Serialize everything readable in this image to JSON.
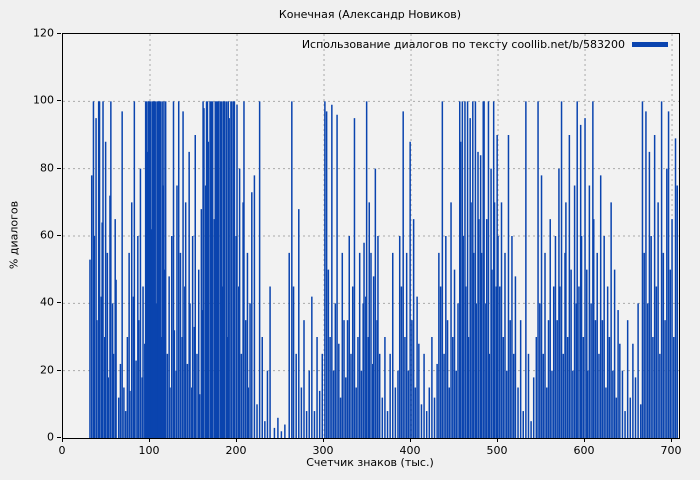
{
  "figure": {
    "title": "Конечная (Александр Новиков)",
    "xlabel": "Счетчик знаков (тыс.)",
    "ylabel": "% диалогов",
    "legend_label": "Использование диалогов по тексту coollib.net/b/583200"
  },
  "colors": {
    "bar": "#0a44af",
    "grid": "#aaaaaa",
    "border": "#000000",
    "background": "#f0f0f0",
    "plot_background": "#f2f2f2",
    "text": "#000000"
  },
  "chart_data": {
    "type": "bar",
    "title": "Конечная (Александр Новиков)",
    "xlabel": "Счетчик знаков (тыс.)",
    "ylabel": "% диалогов",
    "series": [
      {
        "name": "Использование диалогов по тексту coollib.net/b/583200",
        "style": "impulses"
      }
    ],
    "xlim": [
      0,
      708
    ],
    "ylim": [
      0,
      120
    ],
    "xticks": [
      0,
      100,
      200,
      300,
      400,
      500,
      600,
      700
    ],
    "yticks": [
      0,
      20,
      40,
      60,
      80,
      100,
      120
    ],
    "grid": true,
    "legend_position": "top-right",
    "bar_color": "#0a44af",
    "bars": [
      [
        31,
        53
      ],
      [
        33,
        78
      ],
      [
        35,
        100
      ],
      [
        36,
        60
      ],
      [
        38,
        95
      ],
      [
        39,
        35
      ],
      [
        41,
        100
      ],
      [
        42,
        100
      ],
      [
        44,
        42
      ],
      [
        45,
        64
      ],
      [
        46,
        100
      ],
      [
        48,
        30
      ],
      [
        49,
        88
      ],
      [
        51,
        55
      ],
      [
        52,
        18
      ],
      [
        54,
        72
      ],
      [
        55,
        100
      ],
      [
        57,
        40
      ],
      [
        58,
        25
      ],
      [
        60,
        65
      ],
      [
        61,
        47
      ],
      [
        64,
        12
      ],
      [
        66,
        22
      ],
      [
        68,
        97
      ],
      [
        70,
        15
      ],
      [
        72,
        8
      ],
      [
        74,
        30
      ],
      [
        76,
        55
      ],
      [
        77,
        14
      ],
      [
        79,
        70
      ],
      [
        81,
        42
      ],
      [
        82,
        100
      ],
      [
        84,
        23
      ],
      [
        86,
        60
      ],
      [
        87,
        35
      ],
      [
        89,
        80
      ],
      [
        91,
        18
      ],
      [
        92,
        45
      ],
      [
        94,
        28
      ],
      [
        95,
        100
      ],
      [
        96,
        100
      ],
      [
        97,
        85
      ],
      [
        98,
        100
      ],
      [
        99,
        100
      ],
      [
        100,
        100
      ],
      [
        101,
        100
      ],
      [
        102,
        62
      ],
      [
        103,
        100
      ],
      [
        104,
        100
      ],
      [
        105,
        100
      ],
      [
        106,
        100
      ],
      [
        107,
        40
      ],
      [
        108,
        100
      ],
      [
        109,
        100
      ],
      [
        110,
        100
      ],
      [
        111,
        100
      ],
      [
        112,
        100
      ],
      [
        113,
        30
      ],
      [
        114,
        100
      ],
      [
        115,
        75
      ],
      [
        116,
        100
      ],
      [
        117,
        50
      ],
      [
        118,
        100
      ],
      [
        120,
        25
      ],
      [
        122,
        48
      ],
      [
        123,
        15
      ],
      [
        125,
        60
      ],
      [
        127,
        100
      ],
      [
        128,
        32
      ],
      [
        130,
        20
      ],
      [
        131,
        75
      ],
      [
        133,
        100
      ],
      [
        135,
        55
      ],
      [
        137,
        30
      ],
      [
        138,
        97
      ],
      [
        140,
        45
      ],
      [
        141,
        70
      ],
      [
        143,
        22
      ],
      [
        145,
        85
      ],
      [
        146,
        40
      ],
      [
        148,
        15
      ],
      [
        149,
        60
      ],
      [
        151,
        33
      ],
      [
        152,
        90
      ],
      [
        154,
        25
      ],
      [
        156,
        50
      ],
      [
        157,
        13
      ],
      [
        159,
        68
      ],
      [
        160,
        38
      ],
      [
        161,
        100
      ],
      [
        162,
        98
      ],
      [
        164,
        75
      ],
      [
        165,
        100
      ],
      [
        166,
        100
      ],
      [
        167,
        88
      ],
      [
        169,
        100
      ],
      [
        170,
        100
      ],
      [
        171,
        100
      ],
      [
        172,
        100
      ],
      [
        174,
        65
      ],
      [
        175,
        100
      ],
      [
        176,
        100
      ],
      [
        177,
        100
      ],
      [
        178,
        100
      ],
      [
        179,
        100
      ],
      [
        181,
        100
      ],
      [
        182,
        100
      ],
      [
        183,
        45
      ],
      [
        184,
        100
      ],
      [
        185,
        100
      ],
      [
        186,
        100
      ],
      [
        188,
        100
      ],
      [
        189,
        30
      ],
      [
        190,
        100
      ],
      [
        191,
        95
      ],
      [
        193,
        100
      ],
      [
        194,
        100
      ],
      [
        196,
        100
      ],
      [
        197,
        100
      ],
      [
        199,
        60
      ],
      [
        200,
        99
      ],
      [
        202,
        45
      ],
      [
        203,
        80
      ],
      [
        205,
        25
      ],
      [
        207,
        70
      ],
      [
        208,
        100
      ],
      [
        210,
        35
      ],
      [
        212,
        55
      ],
      [
        213,
        15
      ],
      [
        215,
        40
      ],
      [
        217,
        73
      ],
      [
        220,
        78
      ],
      [
        223,
        10
      ],
      [
        226,
        100
      ],
      [
        229,
        30
      ],
      [
        232,
        5
      ],
      [
        235,
        20
      ],
      [
        238,
        45
      ],
      [
        243,
        3
      ],
      [
        247,
        6
      ],
      [
        251,
        2
      ],
      [
        255,
        4
      ],
      [
        260,
        55
      ],
      [
        263,
        100
      ],
      [
        265,
        45
      ],
      [
        268,
        25
      ],
      [
        271,
        68
      ],
      [
        274,
        15
      ],
      [
        277,
        35
      ],
      [
        280,
        8
      ],
      [
        283,
        20
      ],
      [
        286,
        42
      ],
      [
        289,
        8
      ],
      [
        292,
        30
      ],
      [
        295,
        14
      ],
      [
        298,
        25
      ],
      [
        301,
        100
      ],
      [
        303,
        97
      ],
      [
        305,
        50
      ],
      [
        307,
        30
      ],
      [
        309,
        99
      ],
      [
        311,
        20
      ],
      [
        313,
        40
      ],
      [
        315,
        96
      ],
      [
        317,
        28
      ],
      [
        319,
        12
      ],
      [
        321,
        55
      ],
      [
        323,
        35
      ],
      [
        325,
        18
      ],
      [
        327,
        35
      ],
      [
        329,
        60
      ],
      [
        331,
        25
      ],
      [
        333,
        45
      ],
      [
        335,
        95
      ],
      [
        337,
        15
      ],
      [
        339,
        30
      ],
      [
        341,
        55
      ],
      [
        343,
        20
      ],
      [
        345,
        40
      ],
      [
        346,
        58
      ],
      [
        348,
        42
      ],
      [
        349,
        100
      ],
      [
        351,
        30
      ],
      [
        352,
        70
      ],
      [
        354,
        55
      ],
      [
        356,
        22
      ],
      [
        357,
        48
      ],
      [
        359,
        80
      ],
      [
        361,
        35
      ],
      [
        362,
        60
      ],
      [
        364,
        25
      ],
      [
        367,
        12
      ],
      [
        370,
        30
      ],
      [
        373,
        8
      ],
      [
        376,
        25
      ],
      [
        379,
        55
      ],
      [
        382,
        15
      ],
      [
        385,
        20
      ],
      [
        387,
        60
      ],
      [
        389,
        45
      ],
      [
        391,
        97
      ],
      [
        393,
        30
      ],
      [
        395,
        55
      ],
      [
        397,
        20
      ],
      [
        399,
        88
      ],
      [
        401,
        35
      ],
      [
        403,
        65
      ],
      [
        405,
        15
      ],
      [
        407,
        42
      ],
      [
        409,
        28
      ],
      [
        412,
        10
      ],
      [
        415,
        25
      ],
      [
        418,
        8
      ],
      [
        421,
        15
      ],
      [
        424,
        30
      ],
      [
        427,
        12
      ],
      [
        430,
        22
      ],
      [
        432,
        55
      ],
      [
        434,
        45
      ],
      [
        436,
        100
      ],
      [
        438,
        25
      ],
      [
        440,
        60
      ],
      [
        442,
        35
      ],
      [
        444,
        15
      ],
      [
        446,
        70
      ],
      [
        448,
        30
      ],
      [
        450,
        50
      ],
      [
        452,
        20
      ],
      [
        454,
        40
      ],
      [
        456,
        100
      ],
      [
        457,
        88
      ],
      [
        459,
        100
      ],
      [
        460,
        60
      ],
      [
        462,
        100
      ],
      [
        463,
        45
      ],
      [
        465,
        100
      ],
      [
        466,
        30
      ],
      [
        468,
        95
      ],
      [
        469,
        70
      ],
      [
        471,
        100
      ],
      [
        472,
        55
      ],
      [
        474,
        100
      ],
      [
        475,
        40
      ],
      [
        477,
        85
      ],
      [
        478,
        65
      ],
      [
        480,
        84
      ],
      [
        481,
        55
      ],
      [
        483,
        100
      ],
      [
        484,
        100
      ],
      [
        486,
        40
      ],
      [
        487,
        65
      ],
      [
        489,
        100
      ],
      [
        490,
        25
      ],
      [
        492,
        80
      ],
      [
        493,
        50
      ],
      [
        495,
        100
      ],
      [
        496,
        70
      ],
      [
        498,
        45
      ],
      [
        499,
        90
      ],
      [
        500,
        60
      ],
      [
        502,
        45
      ],
      [
        504,
        70
      ],
      [
        506,
        30
      ],
      [
        508,
        55
      ],
      [
        510,
        20
      ],
      [
        512,
        90
      ],
      [
        514,
        35
      ],
      [
        516,
        60
      ],
      [
        518,
        25
      ],
      [
        520,
        48
      ],
      [
        523,
        15
      ],
      [
        526,
        35
      ],
      [
        529,
        8
      ],
      [
        532,
        100
      ],
      [
        535,
        25
      ],
      [
        538,
        5
      ],
      [
        541,
        18
      ],
      [
        544,
        30
      ],
      [
        546,
        100
      ],
      [
        548,
        40
      ],
      [
        550,
        78
      ],
      [
        552,
        25
      ],
      [
        554,
        55
      ],
      [
        556,
        15
      ],
      [
        558,
        35
      ],
      [
        560,
        65
      ],
      [
        562,
        20
      ],
      [
        564,
        45
      ],
      [
        566,
        60
      ],
      [
        568,
        35
      ],
      [
        570,
        80
      ],
      [
        571,
        45
      ],
      [
        573,
        100
      ],
      [
        575,
        25
      ],
      [
        577,
        55
      ],
      [
        578,
        70
      ],
      [
        580,
        30
      ],
      [
        582,
        90
      ],
      [
        584,
        50
      ],
      [
        586,
        20
      ],
      [
        588,
        75
      ],
      [
        590,
        40
      ],
      [
        591,
        100
      ],
      [
        593,
        45
      ],
      [
        595,
        93
      ],
      [
        596,
        60
      ],
      [
        598,
        30
      ],
      [
        600,
        95
      ],
      [
        602,
        50
      ],
      [
        603,
        20
      ],
      [
        605,
        75
      ],
      [
        607,
        40
      ],
      [
        609,
        100
      ],
      [
        610,
        65
      ],
      [
        612,
        35
      ],
      [
        614,
        55
      ],
      [
        616,
        25
      ],
      [
        618,
        78
      ],
      [
        620,
        35
      ],
      [
        622,
        60
      ],
      [
        624,
        15
      ],
      [
        626,
        45
      ],
      [
        628,
        30
      ],
      [
        630,
        70
      ],
      [
        632,
        20
      ],
      [
        634,
        50
      ],
      [
        636,
        12
      ],
      [
        638,
        38
      ],
      [
        640,
        28
      ],
      [
        643,
        20
      ],
      [
        646,
        8
      ],
      [
        649,
        35
      ],
      [
        652,
        12
      ],
      [
        655,
        28
      ],
      [
        658,
        18
      ],
      [
        661,
        40
      ],
      [
        664,
        10
      ],
      [
        666,
        100
      ],
      [
        668,
        55
      ],
      [
        670,
        97
      ],
      [
        672,
        40
      ],
      [
        674,
        85
      ],
      [
        676,
        60
      ],
      [
        678,
        30
      ],
      [
        680,
        90
      ],
      [
        682,
        45
      ],
      [
        684,
        70
      ],
      [
        686,
        25
      ],
      [
        688,
        100
      ],
      [
        690,
        55
      ],
      [
        692,
        35
      ],
      [
        694,
        80
      ],
      [
        696,
        97
      ],
      [
        698,
        50
      ],
      [
        700,
        65
      ],
      [
        702,
        30
      ],
      [
        704,
        89
      ],
      [
        706,
        75
      ]
    ]
  }
}
